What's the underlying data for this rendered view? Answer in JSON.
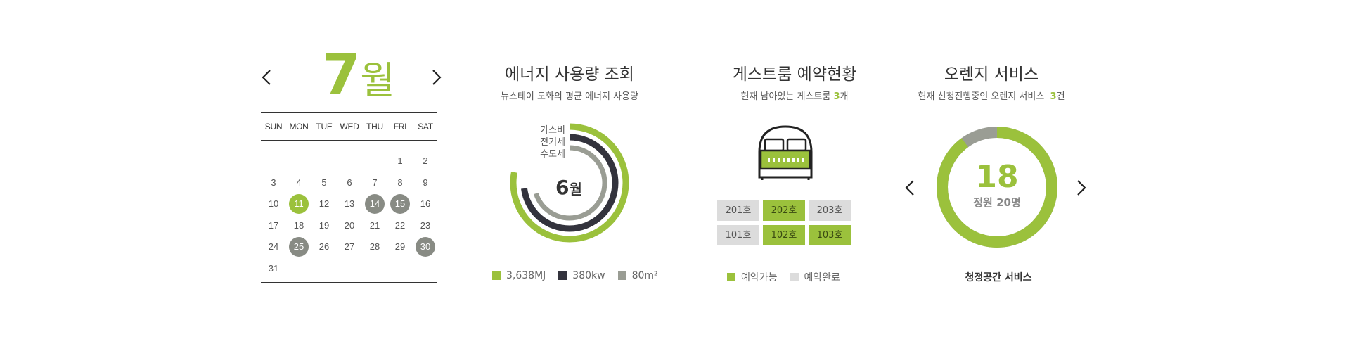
{
  "calendar": {
    "month_number": "7",
    "month_unit": "월",
    "weekdays": [
      "SUN",
      "MON",
      "TUE",
      "WED",
      "THU",
      "FRI",
      "SAT"
    ],
    "days": [
      "1",
      "2",
      "3",
      "4",
      "5",
      "6",
      "7",
      "8",
      "9",
      "10",
      "11",
      "12",
      "13",
      "14",
      "15",
      "16",
      "17",
      "18",
      "19",
      "20",
      "21",
      "22",
      "23",
      "24",
      "25",
      "26",
      "27",
      "28",
      "29",
      "30",
      "31"
    ],
    "green_days": [
      "11"
    ],
    "gray_days": [
      "14",
      "15",
      "25",
      "30"
    ]
  },
  "energy": {
    "title": "에너지 사용량 조회",
    "subtitle": "뉴스테이 도화의 평균 에너지 사용량",
    "center_month": "6",
    "center_unit": "월",
    "ring_labels": [
      "가스비",
      "전기세",
      "수도세"
    ],
    "rings": [
      {
        "name": "가스비",
        "fraction": 0.78,
        "color": "#9bc13c"
      },
      {
        "name": "전기세",
        "fraction": 0.73,
        "color": "#33333d"
      },
      {
        "name": "수도세",
        "fraction": 0.7,
        "color": "#9a9d94"
      }
    ],
    "legend": [
      {
        "label": "3,638MJ",
        "color": "#9bc13c"
      },
      {
        "label": "380kw",
        "color": "#33333d"
      },
      {
        "label": "80m²",
        "color": "#9a9d94"
      }
    ]
  },
  "guestroom": {
    "title": "게스트룸 예약현황",
    "subtitle_pre": "현재 남아있는 게스트룸 ",
    "subtitle_count": "3",
    "subtitle_post": "개",
    "rooms_row1": [
      {
        "label": "201호",
        "status": "booked"
      },
      {
        "label": "202호",
        "status": "avail"
      },
      {
        "label": "203호",
        "status": "booked"
      }
    ],
    "rooms_row2": [
      {
        "label": "101호",
        "status": "booked"
      },
      {
        "label": "102호",
        "status": "avail"
      },
      {
        "label": "103호",
        "status": "avail"
      }
    ],
    "legend_avail": "예약가능",
    "legend_booked": "예약완료",
    "icon": "bed-icon"
  },
  "orange": {
    "title": "오렌지 서비스",
    "subtitle_pre": "현재 신청진행중인 오렌지 서비스  ",
    "subtitle_count": "3",
    "subtitle_post": "건",
    "count": "18",
    "capacity_label": "정원 20명",
    "fill_fraction": 0.9,
    "service_name": "청정공간 서비스"
  },
  "colors": {
    "accent_green": "#9bc13c",
    "dark": "#33333d",
    "gray": "#9a9d94",
    "booked_gray": "#dcdcdc"
  }
}
